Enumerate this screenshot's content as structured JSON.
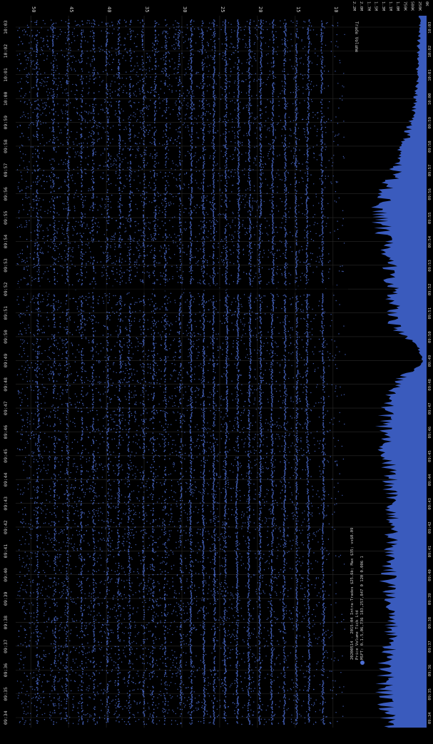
{
  "theme": {
    "background": "#000000",
    "series_color": "#3a5bbd",
    "dot_color": "#4e6fd4",
    "grid_color": "#2a2a2a",
    "text_color": "#c8c8c8"
  },
  "chart_data": [
    {
      "type": "scatter",
      "title": "2020-05-14 Intraday Trades",
      "legend": {
        "position": "bottom-left",
        "lines": [
          "20200514 - 2015-04 Intra-Trades $25.6b; Max $35; vs$0.09",
          "Price  Volume   Tick   Ltd",
          "MSFT: 0.1.5,06,736 183,257,847   0   120   0.006   1"
        ]
      },
      "price_axis": {
        "ticks": [
          "50",
          "45",
          "40",
          "35",
          "30",
          "25",
          "20",
          "15",
          "10"
        ],
        "ylim": [
          8,
          52
        ]
      },
      "time_axis": {
        "ticks": [
          "09:34",
          "09:35",
          "09:36",
          "09:37",
          "09:38",
          "09:39",
          "09:40",
          "09:41",
          "09:42",
          "09:43",
          "09:44",
          "09:45",
          "09:46",
          "09:47",
          "09:48",
          "09:49",
          "09:50",
          "09:51",
          "09:52",
          "09:53",
          "09:54",
          "09:55",
          "09:56",
          "09:57",
          "09:58",
          "09:59",
          "10:00",
          "10:01",
          "10:02",
          "10:03"
        ]
      },
      "grid": true,
      "price_bands": [
        11.5,
        13.2,
        14.8,
        16.3,
        17.9,
        19.5,
        21.0,
        22.6,
        24.2,
        25.7,
        27.3,
        28.8,
        30.4,
        32.1,
        33.6,
        35.2,
        36.8,
        38.3,
        40.0,
        41.6,
        43.2,
        45.0,
        47.0,
        49.2
      ],
      "gap_time": "09:52"
    },
    {
      "type": "area",
      "title": "",
      "volume_axis": {
        "label": "Trade Volume",
        "ticks": [
          "2.2M",
          "2.0M",
          "1.7M",
          "1.5M",
          "1.3M",
          "1.1M",
          "1.0M",
          "750K",
          "500K",
          "250K",
          "0K"
        ],
        "ylim": [
          0,
          2200
        ]
      },
      "volume_profile_k": [
        1180,
        1250,
        1320,
        1290,
        1240,
        1160,
        1120,
        1180,
        1220,
        1200,
        1150,
        1100,
        1080,
        1120,
        1150,
        1180,
        1260,
        1380,
        1300,
        1100,
        900,
        120,
        260,
        1020,
        1050,
        1080,
        1120,
        1200,
        1300,
        1400,
        1480,
        1250,
        1000,
        820,
        640,
        460,
        360,
        300,
        280,
        260,
        240,
        220
      ]
    }
  ]
}
